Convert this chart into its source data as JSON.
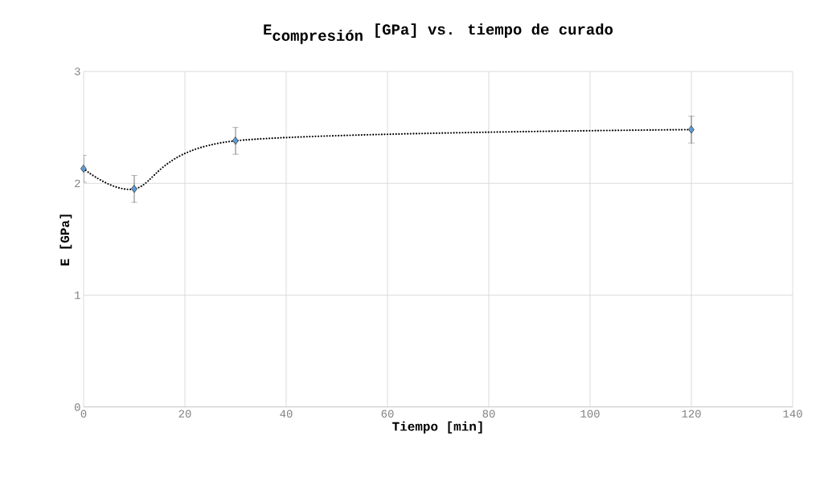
{
  "chart_data": {
    "type": "line",
    "title": "\\textbf{E}_{\\textbf{compresión}}\\textbf{ [GPa] vs. tiempo de curado}",
    "xlabel": "Tiempo [min]",
    "ylabel": "E [GPa]",
    "x": [
      0,
      10,
      30,
      120
    ],
    "series": [
      {
        "color": "#5b9bd5",
        "values": [
          2.13,
          1.95,
          2.38,
          2.48
        ],
        "errors": [
          0.12,
          0.12,
          0.12,
          0.12
        ]
      }
    ],
    "xlim": [
      0,
      140
    ],
    "xticks": [
      0,
      20,
      40,
      60,
      80,
      100,
      120,
      140
    ],
    "ylim": [
      0,
      3
    ],
    "yticks": [
      0,
      1,
      2,
      3
    ],
    "grid": true,
    "marker": "diamond",
    "line_style": "dotted"
  }
}
